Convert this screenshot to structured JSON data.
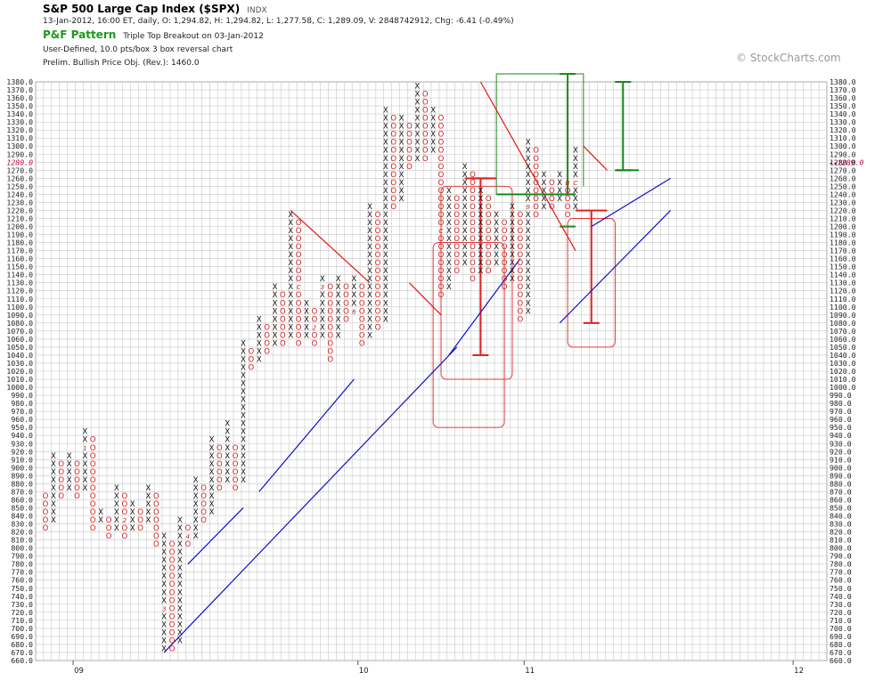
{
  "header": {
    "title": "S&P 500 Large Cap Index ($SPX)",
    "exchange": "INDX",
    "quote_line": "13-Jan-2012, 16:00 ET, daily, O: 1,294.82, H: 1,294.82, L: 1,277.58, C: 1,289.09, V: 2848742912, Chg: -6.41 (-0.49%)",
    "pattern_label": "P&F Pattern",
    "pattern_value": "Triple Top Breakout on 03-Jan-2012",
    "chart_type_line": "User-Defined, 10.0 pts/box 3 box reversal chart",
    "price_objective": "Prelim. Bullish Price Obj. (Rev.): 1460.0"
  },
  "watermark": "© StockCharts.com",
  "current_price_label": "1280.0",
  "current_price_marker": "1289.0",
  "chart_data": {
    "type": "point-and-figure",
    "box_size": 10,
    "reversal": 3,
    "ylim": [
      660,
      1380
    ],
    "y_ticks": [
      660,
      670,
      680,
      690,
      700,
      710,
      720,
      730,
      740,
      750,
      760,
      770,
      780,
      790,
      800,
      810,
      820,
      830,
      840,
      850,
      860,
      870,
      880,
      890,
      900,
      910,
      920,
      930,
      940,
      950,
      960,
      970,
      980,
      990,
      1000,
      1010,
      1020,
      1030,
      1040,
      1050,
      1060,
      1070,
      1080,
      1090,
      1100,
      1110,
      1120,
      1130,
      1140,
      1150,
      1160,
      1170,
      1180,
      1190,
      1200,
      1210,
      1220,
      1230,
      1240,
      1250,
      1260,
      1270,
      1280,
      1290,
      1300,
      1310,
      1320,
      1330,
      1340,
      1350,
      1360,
      1370,
      1380
    ],
    "x_labels": [
      {
        "label": "09",
        "col": 4
      },
      {
        "label": "10",
        "col": 40
      },
      {
        "label": "11",
        "col": 61
      },
      {
        "label": "12",
        "col": 95
      }
    ],
    "columns": [
      {
        "t": "O",
        "lo": 820,
        "hi": 860
      },
      {
        "t": "X",
        "lo": 830,
        "hi": 910
      },
      {
        "t": "O",
        "lo": 860,
        "hi": 900
      },
      {
        "t": "X",
        "lo": 870,
        "hi": 910
      },
      {
        "t": "O",
        "lo": 860,
        "hi": 900
      },
      {
        "t": "X",
        "lo": 870,
        "hi": 940
      },
      {
        "t": "O",
        "lo": 820,
        "hi": 930
      },
      {
        "t": "X",
        "lo": 830,
        "hi": 840
      },
      {
        "t": "O",
        "lo": 810,
        "hi": 830
      },
      {
        "t": "X",
        "lo": 820,
        "hi": 870
      },
      {
        "t": "O",
        "lo": 810,
        "hi": 860
      },
      {
        "t": "X",
        "lo": 820,
        "hi": 850
      },
      {
        "t": "O",
        "lo": 820,
        "hi": 840
      },
      {
        "t": "X",
        "lo": 830,
        "hi": 870
      },
      {
        "t": "O",
        "lo": 800,
        "hi": 860
      },
      {
        "t": "X",
        "lo": 670,
        "hi": 810
      },
      {
        "t": "O",
        "lo": 670,
        "hi": 800
      },
      {
        "t": "X",
        "lo": 680,
        "hi": 830
      },
      {
        "t": "O",
        "lo": 800,
        "hi": 820
      },
      {
        "t": "X",
        "lo": 810,
        "hi": 880
      },
      {
        "t": "O",
        "lo": 830,
        "hi": 870
      },
      {
        "t": "X",
        "lo": 840,
        "hi": 930
      },
      {
        "t": "O",
        "lo": 870,
        "hi": 920
      },
      {
        "t": "X",
        "lo": 880,
        "hi": 950
      },
      {
        "t": "O",
        "lo": 870,
        "hi": 920
      },
      {
        "t": "X",
        "lo": 880,
        "hi": 1050
      },
      {
        "t": "O",
        "lo": 1020,
        "hi": 1040
      },
      {
        "t": "X",
        "lo": 1030,
        "hi": 1080
      },
      {
        "t": "O",
        "lo": 1040,
        "hi": 1070
      },
      {
        "t": "X",
        "lo": 1050,
        "hi": 1120
      },
      {
        "t": "O",
        "lo": 1050,
        "hi": 1110
      },
      {
        "t": "X",
        "lo": 1060,
        "hi": 1210
      },
      {
        "t": "O",
        "lo": 1050,
        "hi": 1200
      },
      {
        "t": "X",
        "lo": 1060,
        "hi": 1100
      },
      {
        "t": "O",
        "lo": 1050,
        "hi": 1090
      },
      {
        "t": "X",
        "lo": 1060,
        "hi": 1130
      },
      {
        "t": "O",
        "lo": 1030,
        "hi": 1120
      },
      {
        "t": "X",
        "lo": 1060,
        "hi": 1130
      },
      {
        "t": "O",
        "lo": 1080,
        "hi": 1120
      },
      {
        "t": "X",
        "lo": 1090,
        "hi": 1130
      },
      {
        "t": "O",
        "lo": 1050,
        "hi": 1120
      },
      {
        "t": "X",
        "lo": 1060,
        "hi": 1220
      },
      {
        "t": "O",
        "lo": 1070,
        "hi": 1210
      },
      {
        "t": "X",
        "lo": 1080,
        "hi": 1340
      },
      {
        "t": "O",
        "lo": 1220,
        "hi": 1330
      },
      {
        "t": "X",
        "lo": 1230,
        "hi": 1330
      },
      {
        "t": "O",
        "lo": 1270,
        "hi": 1320
      },
      {
        "t": "X",
        "lo": 1280,
        "hi": 1370
      },
      {
        "t": "O",
        "lo": 1280,
        "hi": 1360
      },
      {
        "t": "X",
        "lo": 1290,
        "hi": 1340
      },
      {
        "t": "O",
        "lo": 1110,
        "hi": 1330
      },
      {
        "t": "X",
        "lo": 1120,
        "hi": 1240
      },
      {
        "t": "O",
        "lo": 1140,
        "hi": 1230
      },
      {
        "t": "X",
        "lo": 1150,
        "hi": 1270
      },
      {
        "t": "O",
        "lo": 1130,
        "hi": 1260
      },
      {
        "t": "X",
        "lo": 1140,
        "hi": 1240
      },
      {
        "t": "O",
        "lo": 1140,
        "hi": 1230
      },
      {
        "t": "X",
        "lo": 1150,
        "hi": 1210
      },
      {
        "t": "O",
        "lo": 1120,
        "hi": 1200
      },
      {
        "t": "X",
        "lo": 1130,
        "hi": 1220
      },
      {
        "t": "O",
        "lo": 1080,
        "hi": 1210
      },
      {
        "t": "X",
        "lo": 1090,
        "hi": 1300
      },
      {
        "t": "O",
        "lo": 1210,
        "hi": 1290
      },
      {
        "t": "X",
        "lo": 1220,
        "hi": 1260
      },
      {
        "t": "O",
        "lo": 1220,
        "hi": 1250
      },
      {
        "t": "X",
        "lo": 1230,
        "hi": 1260
      },
      {
        "t": "O",
        "lo": 1210,
        "hi": 1250
      },
      {
        "t": "X",
        "lo": 1220,
        "hi": 1290
      }
    ],
    "month_markers": [
      {
        "label": "1",
        "col": 5,
        "y": 920
      },
      {
        "label": "2",
        "col": 10,
        "y": 830
      },
      {
        "label": "3",
        "col": 15,
        "y": 720
      },
      {
        "label": "4",
        "col": 18,
        "y": 810
      },
      {
        "label": "5",
        "col": 20,
        "y": 890
      },
      {
        "label": "7",
        "col": 27,
        "y": 910
      },
      {
        "label": "8",
        "col": 28,
        "y": 1000
      },
      {
        "label": "9",
        "col": 29,
        "y": 1020
      },
      {
        "label": "A",
        "col": 30,
        "y": 1040
      },
      {
        "label": "B",
        "col": 31,
        "y": 1030
      },
      {
        "label": "C",
        "col": 32,
        "y": 1120
      },
      {
        "label": "1",
        "col": 33,
        "y": 1130
      },
      {
        "label": "2",
        "col": 34,
        "y": 1070
      },
      {
        "label": "3",
        "col": 35,
        "y": 1120
      },
      {
        "label": "4",
        "col": 36,
        "y": 1190
      },
      {
        "label": "5",
        "col": 37,
        "y": 1200
      },
      {
        "label": "6",
        "col": 39,
        "y": 1090
      },
      {
        "label": "7",
        "col": 42,
        "y": 1030
      },
      {
        "label": "8",
        "col": 44,
        "y": 1110
      },
      {
        "label": "9",
        "col": 47,
        "y": 1060
      },
      {
        "label": "A",
        "col": 48,
        "y": 1160
      },
      {
        "label": "B",
        "col": 49,
        "y": 1200
      },
      {
        "label": "C",
        "col": 50,
        "y": 1190
      },
      {
        "label": "1",
        "col": 51,
        "y": 1260
      },
      {
        "label": "2",
        "col": 52,
        "y": 1310
      },
      {
        "label": "3",
        "col": 54,
        "y": 1310
      },
      {
        "label": "4",
        "col": 55,
        "y": 1320
      },
      {
        "label": "5",
        "col": 56,
        "y": 1370
      },
      {
        "label": "6",
        "col": 57,
        "y": 1310
      },
      {
        "label": "7",
        "col": 58,
        "y": 1320
      },
      {
        "label": "8",
        "col": 59,
        "y": 1280
      },
      {
        "label": "9",
        "col": 61,
        "y": 1220
      },
      {
        "label": "A",
        "col": 64,
        "y": 1140
      },
      {
        "label": "B",
        "col": 66,
        "y": 1250
      },
      {
        "label": "C",
        "col": 67,
        "y": 1250
      },
      {
        "label": "1",
        "col": 68,
        "y": 1270
      }
    ],
    "trendlines": {
      "bullish_support": [
        {
          "from": [
            15,
            670
          ],
          "to": [
            52,
            1050
          ]
        },
        {
          "from": [
            18,
            780
          ],
          "to": [
            25,
            850
          ]
        },
        {
          "from": [
            27,
            870
          ],
          "to": [
            39,
            1010
          ]
        },
        {
          "from": [
            51,
            1040
          ],
          "to": [
            60,
            1160
          ]
        },
        {
          "from": [
            65,
            1080
          ],
          "to": [
            79,
            1220
          ]
        },
        {
          "from": [
            69,
            1200
          ],
          "to": [
            79,
            1260
          ]
        }
      ],
      "bearish_resistance": [
        {
          "from": [
            31,
            1220
          ],
          "to": [
            41,
            1130
          ]
        },
        {
          "from": [
            46,
            1130
          ],
          "to": [
            50,
            1090
          ]
        },
        {
          "from": [
            55,
            1380
          ],
          "to": [
            67,
            1170
          ]
        },
        {
          "from": [
            68,
            1300
          ],
          "to": [
            71,
            1270
          ]
        }
      ]
    }
  }
}
